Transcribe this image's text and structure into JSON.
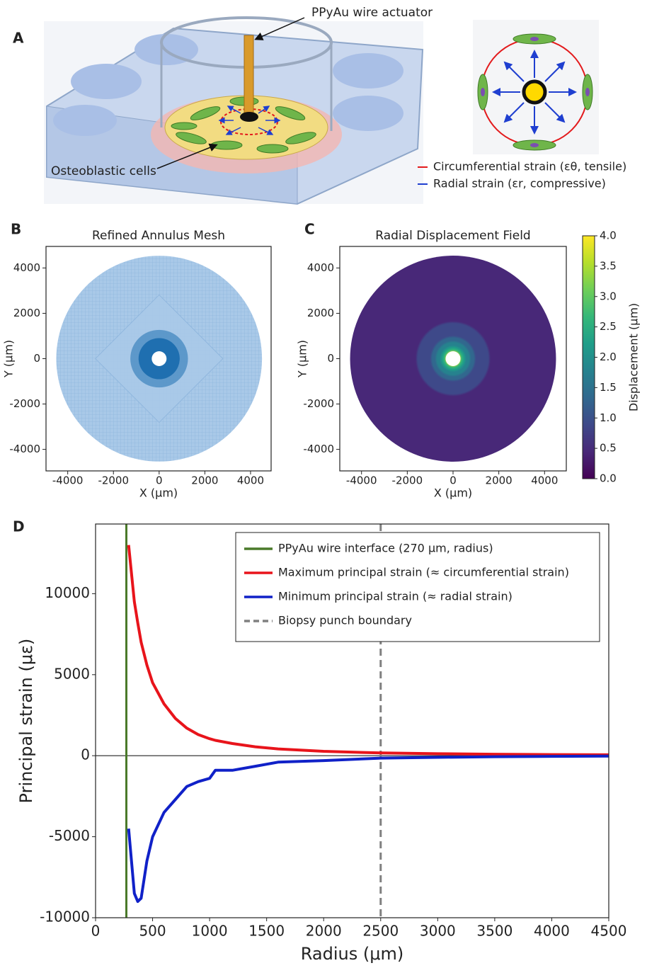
{
  "panel_a": {
    "label": "A",
    "wire_callout": "PPyAu wire actuator",
    "cells_callout": "Osteoblastic cells",
    "legend": [
      {
        "name": "Circumferential strain (εθ, tensile)",
        "color": "#e31a1c"
      },
      {
        "name": "Radial strain (εr, compressive)",
        "color": "#1f3fd0"
      }
    ]
  },
  "chart_data": [
    {
      "type": "mesh",
      "panel_label": "B",
      "title": "Refined Annulus Mesh",
      "xlabel": "X (μm)",
      "ylabel": "Y (μm)",
      "xlim": [
        -4950,
        4900
      ],
      "ylim": [
        -4950,
        4950
      ],
      "xticks": [
        -4000,
        -2000,
        0,
        2000,
        4000
      ],
      "yticks": [
        -4000,
        -2000,
        0,
        2000,
        4000
      ],
      "outer_radius": 4500,
      "inner_radius": 270,
      "color": "#a9c9e8",
      "refined_color": "#1f6fb0"
    },
    {
      "type": "heatmap",
      "panel_label": "C",
      "title": "Radial Displacement Field",
      "xlabel": "X (μm)",
      "ylabel": "Y (μm)",
      "xlim": [
        -4950,
        4950
      ],
      "ylim": [
        -4950,
        4950
      ],
      "xticks": [
        -4000,
        -2000,
        0,
        2000,
        4000
      ],
      "yticks": [
        -4000,
        -2000,
        0,
        2000,
        4000
      ],
      "outer_radius": 4500,
      "inner_radius": 270,
      "max_displacement": 4.0,
      "colormap": [
        "#440154",
        "#482878",
        "#3e4989",
        "#31688e",
        "#26828e",
        "#1f9e89",
        "#35b779",
        "#6ece58",
        "#b5de2b",
        "#fde725"
      ],
      "colorbar": {
        "label": "Displacement (μm)",
        "lim": [
          0,
          4
        ],
        "ticks": [
          {
            "value": 0,
            "label": "0.0"
          },
          0.5,
          {
            "value": 1,
            "label": "1.0"
          },
          1.5,
          {
            "value": 2,
            "label": "2.0"
          },
          2.5,
          {
            "value": 3,
            "label": "3.0"
          },
          3.5,
          {
            "value": 4,
            "label": "4.0"
          }
        ]
      }
    },
    {
      "type": "line",
      "panel_label": "D",
      "xlabel": "Radius (μm)",
      "ylabel": "Principal strain (με)",
      "xlim": [
        0,
        4500
      ],
      "ylim": [
        -10000,
        14300
      ],
      "xticks": [
        0,
        500,
        1000,
        1500,
        2000,
        2500,
        3000,
        3500,
        4000,
        4500
      ],
      "yticks": [
        -10000,
        -5000,
        0,
        5000,
        10000
      ],
      "x": [
        290,
        340,
        370,
        400,
        450,
        500,
        600,
        700,
        800,
        900,
        1000,
        1050,
        1200,
        1400,
        1600,
        2000,
        2500,
        3000,
        3500,
        4000,
        4500
      ],
      "series": [
        {
          "name": "Maximum principal strain (≈ circumferential strain)",
          "color": "#e8141b",
          "values": [
            13000,
            9500,
            8200,
            7000,
            5600,
            4500,
            3200,
            2300,
            1700,
            1300,
            1050,
            950,
            750,
            550,
            420,
            270,
            170,
            120,
            90,
            70,
            55
          ]
        },
        {
          "name": "Minimum principal strain (≈ radial strain)",
          "color": "#1021c8",
          "values": [
            -4500,
            -8500,
            -9000,
            -8800,
            -6500,
            -5000,
            -3500,
            -2700,
            -1900,
            -1600,
            -1400,
            -900,
            -900,
            -650,
            -400,
            -300,
            -150,
            -100,
            -60,
            -40,
            -20
          ]
        }
      ],
      "reference_lines": [
        {
          "name": "PPyAu wire interface (270 μm, radius)",
          "x": 270,
          "color": "#4a7a2a",
          "dashed": false
        },
        {
          "name": "Biopsy punch boundary",
          "x": 2500,
          "color": "#808080",
          "dashed": true
        }
      ]
    }
  ]
}
